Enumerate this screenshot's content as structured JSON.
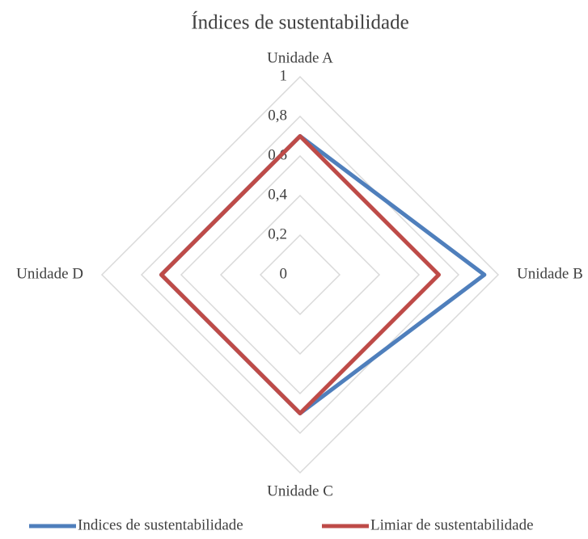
{
  "chart_data": {
    "type": "radar",
    "title": "Índices de sustentabilidade",
    "categories": [
      "Unidade A",
      "Unidade B",
      "Unidade C",
      "Unidade D"
    ],
    "series": [
      {
        "name": "Indices de sustentabilidade",
        "color": "#4f7fbc",
        "values": [
          0.7,
          0.93,
          0.7,
          0.7
        ]
      },
      {
        "name": "Limiar de sustentabilidade",
        "color": "#be4b48",
        "values": [
          0.7,
          0.7,
          0.7,
          0.7
        ]
      }
    ],
    "ylim": [
      0,
      1
    ],
    "yticks": [
      0,
      {
        "value": 0.2,
        "label": "0,2"
      },
      {
        "value": 0.4,
        "label": "0,4"
      },
      {
        "value": 0.6,
        "label": "0,6"
      },
      {
        "value": 0.8,
        "label": "0,8"
      },
      1
    ],
    "grid": true,
    "legend": "bottom"
  }
}
